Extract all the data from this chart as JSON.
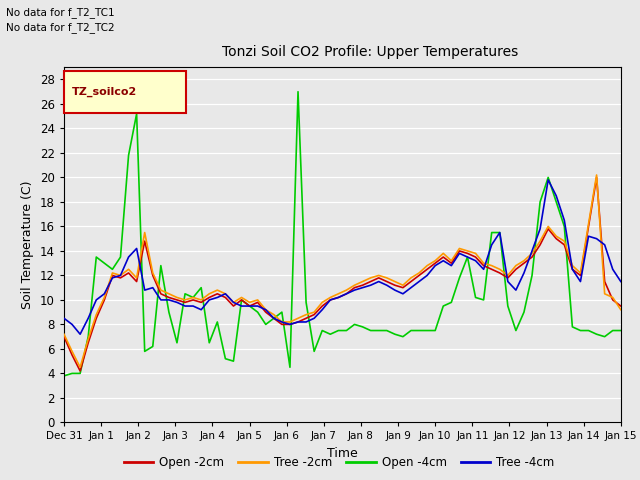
{
  "title": "Tonzi Soil CO2 Profile: Upper Temperatures",
  "xlabel": "Time",
  "ylabel": "Soil Temperature (C)",
  "annotation1": "No data for f_T2_TC1",
  "annotation2": "No data for f_T2_TC2",
  "legend_box_label": "TZ_soilco2",
  "ylim": [
    0,
    29
  ],
  "yticks": [
    0,
    2,
    4,
    6,
    8,
    10,
    12,
    14,
    16,
    18,
    20,
    22,
    24,
    26,
    28
  ],
  "xtick_labels": [
    "Dec 31",
    "Jan 1",
    "Jan 2",
    "Jan 3",
    "Jan 4",
    "Jan 5",
    "Jan 6",
    "Jan 7",
    "Jan 8",
    "Jan 9",
    "Jan 10",
    "Jan 11",
    "Jan 12",
    "Jan 13",
    "Jan 14",
    "Jan 15"
  ],
  "bg_color": "#e8e8e8",
  "grid_color": "#ffffff",
  "line_colors": {
    "open_2cm": "#cc0000",
    "tree_2cm": "#ff9900",
    "open_4cm": "#00cc00",
    "tree_4cm": "#0000cc"
  },
  "line_width": 1.2,
  "open_2cm": [
    7.0,
    5.5,
    4.2,
    6.5,
    8.5,
    10.0,
    12.0,
    11.8,
    12.2,
    11.5,
    14.8,
    12.0,
    10.5,
    10.2,
    10.0,
    9.8,
    10.0,
    9.8,
    10.2,
    10.5,
    10.2,
    9.5,
    10.0,
    9.5,
    9.8,
    9.0,
    8.5,
    8.0,
    8.0,
    8.2,
    8.5,
    8.8,
    9.5,
    10.0,
    10.2,
    10.5,
    11.0,
    11.2,
    11.5,
    11.8,
    11.5,
    11.2,
    11.0,
    11.5,
    12.0,
    12.5,
    13.0,
    13.5,
    13.0,
    14.0,
    13.8,
    13.5,
    12.8,
    12.5,
    12.2,
    11.8,
    12.5,
    13.0,
    13.5,
    14.5,
    15.8,
    15.0,
    14.5,
    12.5,
    12.0,
    16.0,
    20.0,
    11.5,
    10.0,
    9.5
  ],
  "tree_2cm": [
    7.2,
    5.8,
    4.5,
    6.8,
    8.8,
    10.2,
    12.2,
    12.0,
    12.5,
    11.8,
    15.5,
    12.2,
    10.8,
    10.5,
    10.2,
    10.0,
    10.2,
    10.0,
    10.5,
    10.8,
    10.5,
    9.8,
    10.2,
    9.8,
    10.0,
    9.2,
    8.8,
    8.2,
    8.2,
    8.5,
    8.8,
    9.0,
    9.8,
    10.2,
    10.5,
    10.8,
    11.2,
    11.5,
    11.8,
    12.0,
    11.8,
    11.5,
    11.2,
    11.8,
    12.2,
    12.8,
    13.2,
    13.8,
    13.2,
    14.2,
    14.0,
    13.8,
    13.0,
    12.8,
    12.5,
    12.0,
    12.8,
    13.2,
    13.8,
    14.8,
    16.0,
    15.2,
    14.8,
    12.8,
    12.2,
    16.2,
    20.2,
    10.5,
    10.2,
    9.2
  ],
  "open_4cm": [
    3.8,
    4.0,
    4.0,
    7.0,
    13.5,
    13.0,
    12.5,
    13.5,
    21.8,
    25.2,
    5.8,
    6.2,
    12.8,
    9.0,
    6.5,
    10.5,
    10.2,
    11.0,
    6.5,
    8.2,
    5.2,
    5.0,
    10.0,
    9.5,
    9.0,
    8.0,
    8.5,
    9.0,
    4.5,
    27.0,
    9.8,
    5.8,
    7.5,
    7.2,
    7.5,
    7.5,
    8.0,
    7.8,
    7.5,
    7.5,
    7.5,
    7.2,
    7.0,
    7.5,
    7.5,
    7.5,
    7.5,
    9.5,
    9.8,
    11.8,
    13.5,
    10.2,
    10.0,
    15.5,
    15.5,
    9.5,
    7.5,
    9.0,
    12.0,
    18.0,
    20.0,
    18.0,
    16.0,
    7.8,
    7.5,
    7.5,
    7.2,
    7.0,
    7.5,
    7.5
  ],
  "tree_4cm": [
    8.5,
    8.0,
    7.2,
    8.5,
    10.0,
    10.5,
    11.8,
    12.0,
    13.5,
    14.2,
    10.8,
    11.0,
    10.0,
    10.0,
    9.8,
    9.5,
    9.5,
    9.2,
    10.0,
    10.2,
    10.5,
    9.8,
    9.5,
    9.5,
    9.5,
    9.2,
    8.5,
    8.2,
    8.0,
    8.2,
    8.2,
    8.5,
    9.2,
    10.0,
    10.2,
    10.5,
    10.8,
    11.0,
    11.2,
    11.5,
    11.2,
    10.8,
    10.5,
    11.0,
    11.5,
    12.0,
    12.8,
    13.2,
    12.8,
    13.8,
    13.5,
    13.2,
    12.5,
    14.5,
    15.5,
    11.5,
    10.8,
    12.2,
    14.0,
    15.8,
    19.8,
    18.5,
    16.5,
    12.5,
    11.5,
    15.2,
    15.0,
    14.5,
    12.5,
    11.5
  ]
}
